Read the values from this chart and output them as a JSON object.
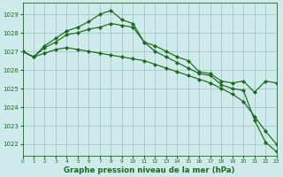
{
  "title": "Graphe pression niveau de la mer (hPa)",
  "bg_color": "#ceeaea",
  "grid_color": "#aacccc",
  "line_color": "#1a6b1a",
  "xlim": [
    0,
    23
  ],
  "ylim": [
    1021.4,
    1029.6
  ],
  "yticks": [
    1022,
    1023,
    1024,
    1025,
    1026,
    1027,
    1028,
    1029
  ],
  "xticks": [
    0,
    1,
    2,
    3,
    4,
    5,
    6,
    7,
    8,
    9,
    10,
    11,
    12,
    13,
    14,
    15,
    16,
    17,
    18,
    19,
    20,
    21,
    22,
    23
  ],
  "series": [
    [
      1027.0,
      1026.7,
      1026.9,
      1027.1,
      1027.2,
      1027.1,
      1027.0,
      1026.9,
      1026.8,
      1026.7,
      1026.6,
      1026.5,
      1026.3,
      1026.1,
      1025.9,
      1025.7,
      1025.5,
      1025.3,
      1025.0,
      1024.7,
      1024.3,
      1023.5,
      1022.7,
      1022.0
    ],
    [
      1027.0,
      1026.7,
      1027.3,
      1027.7,
      1028.1,
      1028.3,
      1028.6,
      1029.0,
      1029.2,
      1028.7,
      1028.5,
      1027.5,
      1027.3,
      1027.0,
      1026.7,
      1026.5,
      1025.9,
      1025.8,
      1025.4,
      1025.3,
      1025.4,
      1024.8,
      1025.4,
      1025.3
    ],
    [
      1027.0,
      1026.7,
      1027.2,
      1027.5,
      1027.9,
      1028.0,
      1028.2,
      1028.3,
      1028.5,
      1028.4,
      1028.3,
      1027.5,
      1027.0,
      1026.7,
      1026.4,
      1026.1,
      1025.8,
      1025.7,
      1025.2,
      1025.0,
      1024.9,
      1023.3,
      1022.1,
      1021.6
    ]
  ]
}
